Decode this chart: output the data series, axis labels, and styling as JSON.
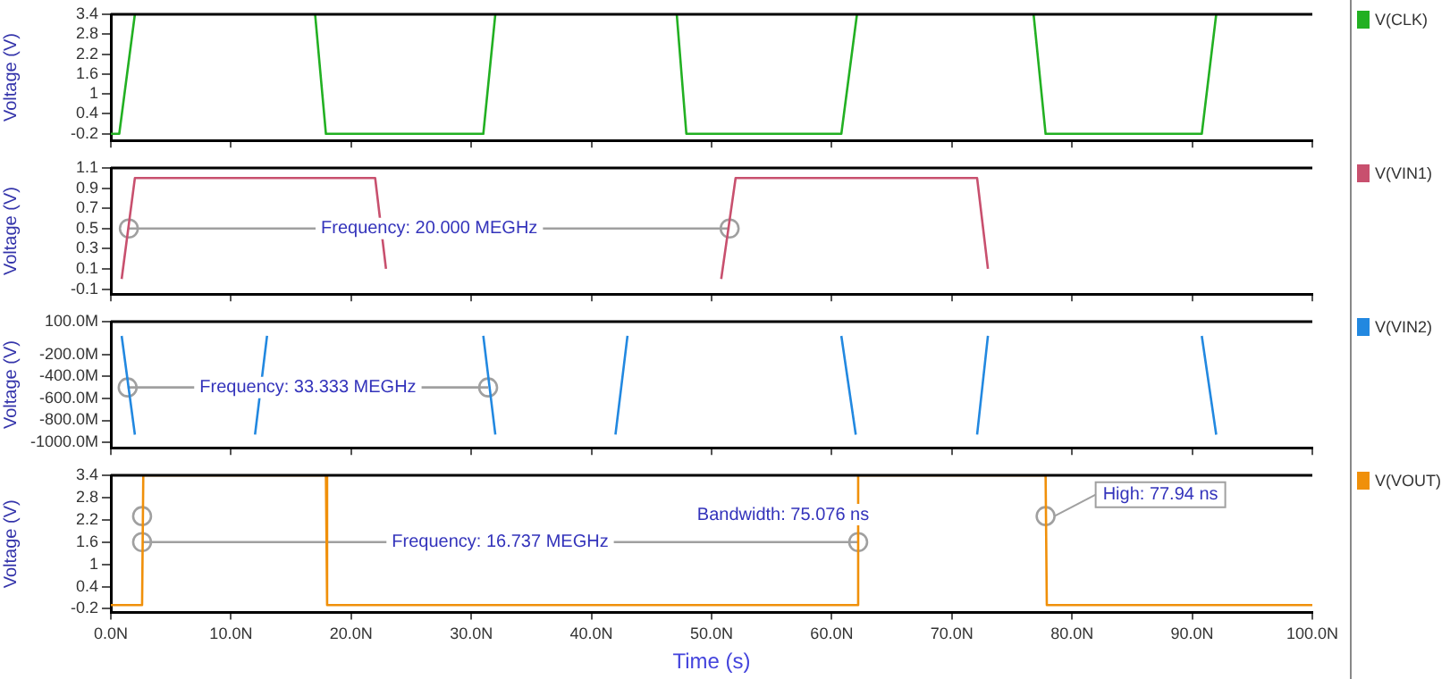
{
  "chart_data": [
    {
      "type": "line",
      "ylabel": "Voltage (V)",
      "legend": "right",
      "tick_labels": "y",
      "marker": "none",
      "xlim": [
        0,
        100
      ],
      "xticks": [
        {
          "value": 0,
          "label": null
        },
        {
          "value": 10,
          "label": null
        },
        {
          "value": 20,
          "label": null
        },
        {
          "value": 30,
          "label": null
        },
        {
          "value": 40,
          "label": null
        },
        {
          "value": 50,
          "label": null
        },
        {
          "value": 60,
          "label": null
        },
        {
          "value": 70,
          "label": null
        },
        {
          "value": 80,
          "label": null
        },
        {
          "value": 90,
          "label": null
        },
        {
          "value": 100,
          "label": null
        }
      ],
      "ylim": [
        -0.4,
        3.4
      ],
      "yticks": [
        -0.2,
        0.4,
        1.0,
        1.6,
        2.2,
        2.8,
        3.4
      ],
      "series": [
        {
          "name": "V(CLK)",
          "color": "#22b022",
          "x": [
            0,
            0.7,
            2,
            9.5,
            17,
            17.9,
            31,
            32,
            39.5,
            47.1,
            47.9,
            60.8,
            62.1,
            69.5,
            76.8,
            77.8,
            90.8,
            92
          ],
          "values": [
            -0.2,
            -0.2,
            3.4,
            null,
            3.4,
            -0.2,
            -0.2,
            3.4,
            null,
            3.4,
            -0.2,
            -0.2,
            3.4,
            null,
            3.4,
            -0.2,
            -0.2,
            3.4
          ]
        }
      ]
    },
    {
      "type": "line",
      "ylabel": "Voltage (V)",
      "legend": "right",
      "tick_labels": "y",
      "marker": "none",
      "xlim": [
        0,
        100
      ],
      "xticks": [
        {
          "value": 0,
          "label": null
        },
        {
          "value": 10,
          "label": null
        },
        {
          "value": 20,
          "label": null
        },
        {
          "value": 30,
          "label": null
        },
        {
          "value": 40,
          "label": null
        },
        {
          "value": 50,
          "label": null
        },
        {
          "value": 60,
          "label": null
        },
        {
          "value": 70,
          "label": null
        },
        {
          "value": 80,
          "label": null
        },
        {
          "value": 90,
          "label": null
        },
        {
          "value": 100,
          "label": null
        }
      ],
      "ylim": [
        -0.15,
        1.1
      ],
      "yticks": [
        -0.1,
        0.1,
        0.3,
        0.5,
        0.7,
        0.9,
        1.1
      ],
      "series": [
        {
          "name": "V(VIN1)",
          "color": "#c8506e",
          "x": [
            0.9,
            2,
            22,
            22.9,
            37,
            50.8,
            52,
            72.1,
            73
          ],
          "values": [
            0,
            1,
            1,
            0.1,
            null,
            0,
            1,
            1,
            0.1
          ]
        },
        {
          "type": "line",
          "color": "#a0a0a0",
          "marker": "circle",
          "x": [
            1.5,
            51.5
          ],
          "values": [
            0.5,
            0.5
          ]
        }
      ],
      "annotations": [
        {
          "text": "Frequency: 20.000 MEGHz",
          "x": 26.5,
          "y": 0.5
        }
      ]
    },
    {
      "type": "line",
      "ylabel": "Voltage (V)",
      "legend": "right",
      "tick_labels": "y",
      "marker": "none",
      "xlim": [
        0,
        100
      ],
      "xticks": [
        {
          "value": 0,
          "label": null
        },
        {
          "value": 10,
          "label": null
        },
        {
          "value": 20,
          "label": null
        },
        {
          "value": 30,
          "label": null
        },
        {
          "value": 40,
          "label": null
        },
        {
          "value": 50,
          "label": null
        },
        {
          "value": 60,
          "label": null
        },
        {
          "value": 70,
          "label": null
        },
        {
          "value": 80,
          "label": null
        },
        {
          "value": 90,
          "label": null
        },
        {
          "value": 100,
          "label": null
        }
      ],
      "ylim": [
        -1050,
        100
      ],
      "yticks": [
        {
          "value": -1000,
          "label": "-1000.0M"
        },
        {
          "value": -800,
          "label": "-800.0M"
        },
        {
          "value": -600,
          "label": "-600.0M"
        },
        {
          "value": -400,
          "label": "-400.0M"
        },
        {
          "value": -200,
          "label": "-200.0M"
        },
        {
          "value": 100,
          "label": "100.0M"
        }
      ],
      "series": [
        {
          "name": "V(VIN2)",
          "color": "#2288e0",
          "x": [
            0.9,
            2,
            7,
            12,
            13,
            22,
            31,
            32,
            37,
            42,
            43,
            52,
            60.8,
            62,
            67,
            72.1,
            73,
            82,
            90.8,
            92
          ],
          "values": [
            -30,
            -930,
            null,
            -930,
            -30,
            null,
            -30,
            -930,
            null,
            -930,
            -30,
            null,
            -30,
            -930,
            null,
            -930,
            -30,
            null,
            -30,
            -930
          ]
        },
        {
          "type": "line",
          "color": "#a0a0a0",
          "marker": "circle",
          "x": [
            1.4,
            31.4
          ],
          "values": [
            -500,
            -500
          ]
        }
      ],
      "annotations": [
        {
          "text": "Frequency: 33.333 MEGHz",
          "x": 16.4,
          "y": -500
        }
      ]
    },
    {
      "type": "line",
      "ylabel": "Voltage (V)",
      "xlabel": "Time (s)",
      "legend": "right",
      "marker": "none",
      "xlim": [
        0,
        100
      ],
      "xticks": [
        {
          "value": 0,
          "label": "0.0N"
        },
        {
          "value": 10,
          "label": "10.0N"
        },
        {
          "value": 20,
          "label": "20.0N"
        },
        {
          "value": 30,
          "label": "30.0N"
        },
        {
          "value": 40,
          "label": "40.0N"
        },
        {
          "value": 50,
          "label": "50.0N"
        },
        {
          "value": 60,
          "label": "60.0N"
        },
        {
          "value": 70,
          "label": "70.0N"
        },
        {
          "value": 80,
          "label": "80.0N"
        },
        {
          "value": 90,
          "label": "90.0N"
        },
        {
          "value": 100,
          "label": "100.0N"
        }
      ],
      "ylim": [
        -0.3,
        3.4
      ],
      "yticks": [
        -0.2,
        0.4,
        1.0,
        1.6,
        2.2,
        2.8,
        3.4
      ],
      "series": [
        {
          "name": "V(VOUT)",
          "color": "#f0900a",
          "x": [
            0,
            2.6,
            2.7,
            17.9,
            18,
            62.1,
            62.2,
            77.8,
            77.9,
            100
          ],
          "values": [
            -0.1,
            -0.1,
            3.4,
            3.4,
            -0.1,
            -0.1,
            3.4,
            3.4,
            -0.1,
            -0.1
          ]
        },
        {
          "type": "line",
          "color": "#a0a0a0",
          "marker": "circle",
          "x": [
            2.6,
            62.2
          ],
          "values": [
            1.6,
            1.6
          ]
        },
        {
          "type": "scatter",
          "color": "#a0a0a0",
          "marker": "circle",
          "x": [
            2.6,
            77.8
          ],
          "values": [
            2.3,
            2.3
          ]
        }
      ],
      "annotations": [
        {
          "text": "Frequency: 16.737 MEGHz",
          "x": 32.4,
          "y": 1.6
        },
        "Bandwidth: 75.076 ns",
        {
          "text": "High: 77.94 ns",
          "x": 77.8,
          "y": 2.3
        }
      ]
    }
  ]
}
